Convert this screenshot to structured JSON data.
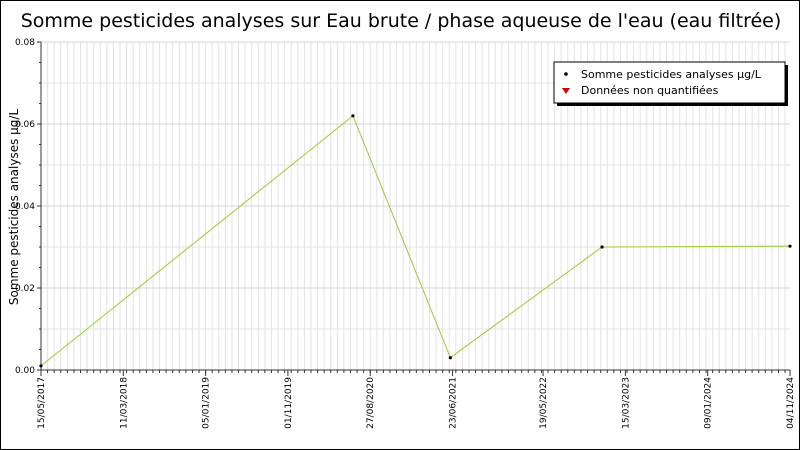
{
  "chart_data": {
    "type": "line",
    "title": "Somme pesticides analyses sur Eau brute / phase aqueuse de l'eau (eau filtrée)",
    "xlabel": "",
    "ylabel": "Somme pesticides analyses µg/L",
    "x_axis_type": "date",
    "xlim": [
      "2017-05-15",
      "2024-11-04"
    ],
    "x_tick_dates": [
      "2017-05-15",
      "2018-03-11",
      "2019-01-05",
      "2019-11-01",
      "2020-08-27",
      "2021-06-23",
      "2022-05-19",
      "2023-03-15",
      "2024-01-09",
      "2024-11-04"
    ],
    "x_tick_labels": [
      "15/05/2017",
      "11/03/2018",
      "05/01/2019",
      "01/11/2019",
      "27/08/2020",
      "23/06/2021",
      "19/05/2022",
      "15/03/2023",
      "09/01/2024",
      "04/11/2024"
    ],
    "ylim": [
      0,
      0.08
    ],
    "y_ticks": [
      0,
      0.02,
      0.04,
      0.06,
      0.08
    ],
    "y_tick_labels": [
      "0.00",
      "0.02",
      "0.04",
      "0.06",
      "0.08"
    ],
    "grid": true,
    "legend_placement": "top-right",
    "legend": [
      {
        "label": "Somme pesticides analyses µg/L",
        "marker": "dot",
        "color": "#000000"
      },
      {
        "label": "Données non quantifiées",
        "marker": "triangle-down",
        "color": "#cc0000"
      }
    ],
    "series": [
      {
        "name": "Somme pesticides analyses µg/L",
        "line_color": "#9acd32",
        "marker_color": "#000000",
        "x": [
          "2017-05-15",
          "2020-06-25",
          "2021-06-15",
          "2022-12-20",
          "2024-11-04"
        ],
        "values": [
          0.001,
          0.062,
          0.003,
          0.03,
          0.0302
        ]
      }
    ],
    "colors": {
      "grid_major": "#d4d4d4",
      "grid_minor": "#e3e3e3",
      "axis": "#333333",
      "legend_shadow": "#000000"
    }
  }
}
